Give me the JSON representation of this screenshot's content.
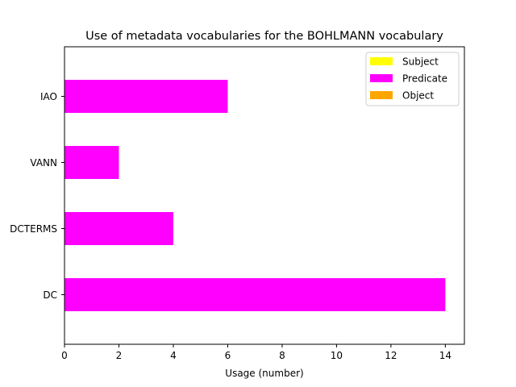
{
  "chart_data": {
    "type": "bar",
    "orientation": "horizontal",
    "stacked": true,
    "title": "Use of metadata vocabularies for the BOHLMANN vocabulary",
    "xlabel": "Usage (number)",
    "ylabel": "",
    "categories": [
      "DC",
      "DCTERMS",
      "VANN",
      "IAO"
    ],
    "series": [
      {
        "name": "Subject",
        "color": "#ffff00",
        "values": [
          0,
          0,
          0,
          0
        ]
      },
      {
        "name": "Predicate",
        "color": "#ff00ff",
        "values": [
          14,
          4,
          2,
          6
        ]
      },
      {
        "name": "Object",
        "color": "#ffa500",
        "values": [
          0,
          0,
          0,
          0
        ]
      }
    ],
    "xlim": [
      0,
      14.7
    ],
    "xticks": [
      0,
      2,
      4,
      6,
      8,
      10,
      12,
      14
    ],
    "grid": false,
    "legend": "top-right"
  }
}
